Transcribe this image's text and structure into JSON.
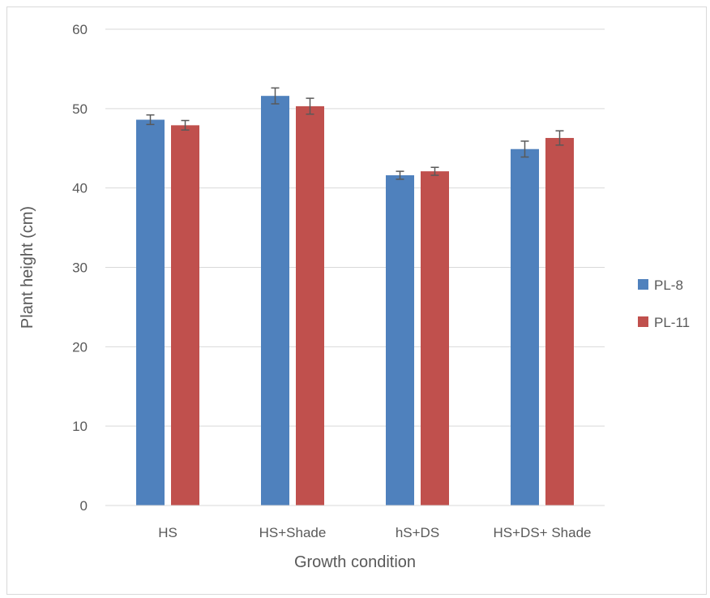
{
  "chart_data": {
    "type": "bar",
    "title": "",
    "xlabel": "Growth condition",
    "ylabel": "Plant height (cm)",
    "categories": [
      "HS",
      "HS+Shade",
      "hS+DS",
      "HS+DS+ Shade"
    ],
    "series": [
      {
        "name": "PL-8",
        "color": "#4f81bd",
        "values": [
          48.6,
          51.6,
          41.6,
          44.9
        ],
        "errors": [
          0.6,
          1.0,
          0.5,
          1.0
        ]
      },
      {
        "name": "PL-11",
        "color": "#c0504d",
        "values": [
          47.9,
          50.3,
          42.1,
          46.3
        ],
        "errors": [
          0.6,
          1.0,
          0.5,
          0.9
        ]
      }
    ],
    "ylim": [
      0,
      60
    ],
    "yticks": [
      0,
      10,
      20,
      30,
      40,
      50,
      60
    ],
    "grid": true,
    "legend_position": "right"
  }
}
